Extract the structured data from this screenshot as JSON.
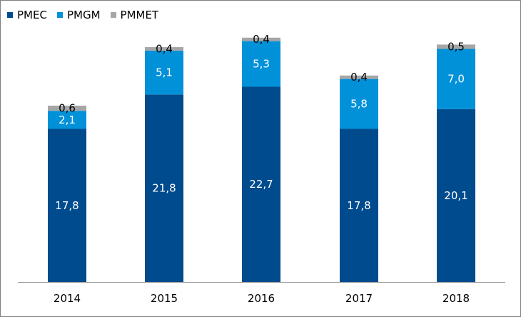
{
  "chart_data": {
    "type": "bar",
    "stacked": true,
    "categories": [
      "2014",
      "2015",
      "2016",
      "2017",
      "2018"
    ],
    "series": [
      {
        "name": "PMEC",
        "color": "#004b8d",
        "values": [
          17.8,
          21.8,
          22.7,
          17.8,
          20.1
        ],
        "labels": [
          "17,8",
          "21,8",
          "22,7",
          "17,8",
          "20,1"
        ],
        "label_color": "#ffffff"
      },
      {
        "name": "PMGM",
        "color": "#0091d9",
        "values": [
          2.1,
          5.1,
          5.3,
          5.8,
          7.0
        ],
        "labels": [
          "2,1",
          "5,1",
          "5,3",
          "5,8",
          "7,0"
        ],
        "label_color": "#ffffff"
      },
      {
        "name": "PMMET",
        "color": "#a6a6a6",
        "values": [
          0.6,
          0.4,
          0.4,
          0.4,
          0.5
        ],
        "labels": [
          "0,6",
          "0,4",
          "0,4",
          "0,4",
          "0,5"
        ],
        "label_color": "#000000"
      }
    ],
    "title": "",
    "xlabel": "",
    "ylabel": "",
    "ylim": [
      0,
      30
    ],
    "grid": false,
    "legend_position": "top-left"
  }
}
